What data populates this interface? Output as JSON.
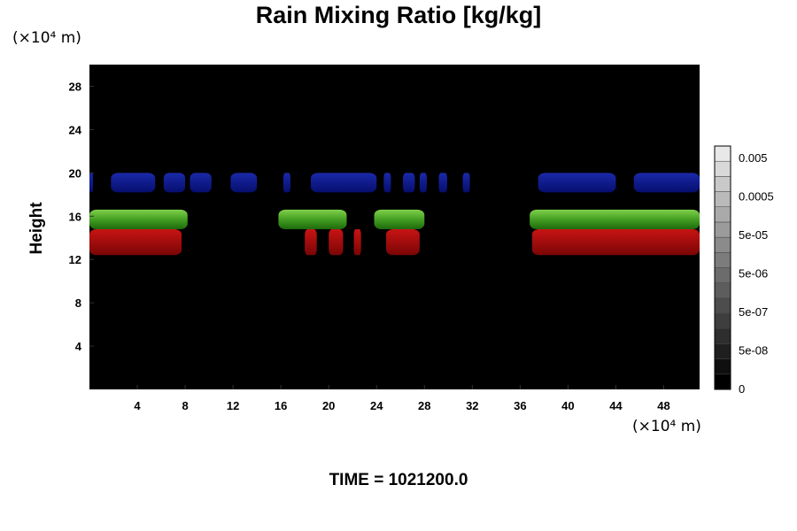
{
  "chart_data": {
    "type": "heatmap",
    "title": "Rain Mixing Ratio [kg/kg]",
    "xlabel": "",
    "ylabel": "Height",
    "x_unit": "(×10⁴ m)",
    "y_unit": "(×10⁴ m)",
    "xlim": [
      0,
      51
    ],
    "ylim": [
      0,
      30
    ],
    "x_ticks": [
      4,
      8,
      12,
      16,
      20,
      24,
      28,
      32,
      36,
      40,
      44,
      48
    ],
    "y_ticks": [
      4,
      8,
      12,
      16,
      20,
      24,
      28
    ],
    "background_color": "#000000",
    "colorbar": {
      "labels": [
        "0.005",
        "0.0005",
        "5e-05",
        "5e-06",
        "5e-07",
        "5e-08",
        "0"
      ],
      "levels": 16
    },
    "regions": [
      {
        "layer": "blue",
        "color": "#0a168c",
        "y_range": [
          18.2,
          20.0
        ],
        "x_spans": [
          [
            0,
            0.3
          ],
          [
            1.8,
            5.5
          ],
          [
            6.2,
            8.0
          ],
          [
            8.4,
            10.2
          ],
          [
            11.8,
            14.0
          ],
          [
            16.2,
            16.8
          ],
          [
            18.5,
            24.0
          ],
          [
            24.6,
            25.2
          ],
          [
            26.2,
            27.2
          ],
          [
            27.6,
            28.2
          ],
          [
            29.2,
            29.9
          ],
          [
            31.2,
            31.8
          ],
          [
            37.5,
            44.0
          ],
          [
            45.5,
            51.0
          ]
        ]
      },
      {
        "layer": "green",
        "color": "#2e8a14",
        "y_range": [
          14.8,
          16.6
        ],
        "x_spans": [
          [
            0,
            8.2
          ],
          [
            15.8,
            21.5
          ],
          [
            23.8,
            28.0
          ],
          [
            36.8,
            51.0
          ]
        ]
      },
      {
        "layer": "red",
        "color": "#9a0a0a",
        "y_range": [
          12.4,
          14.8
        ],
        "x_spans": [
          [
            0,
            7.7
          ],
          [
            18.0,
            19.0
          ],
          [
            20.0,
            21.2
          ],
          [
            22.1,
            22.7
          ],
          [
            24.8,
            27.6
          ],
          [
            37.0,
            51.0
          ]
        ]
      }
    ]
  },
  "footer": {
    "time_text": "TIME = 1021200.0"
  }
}
